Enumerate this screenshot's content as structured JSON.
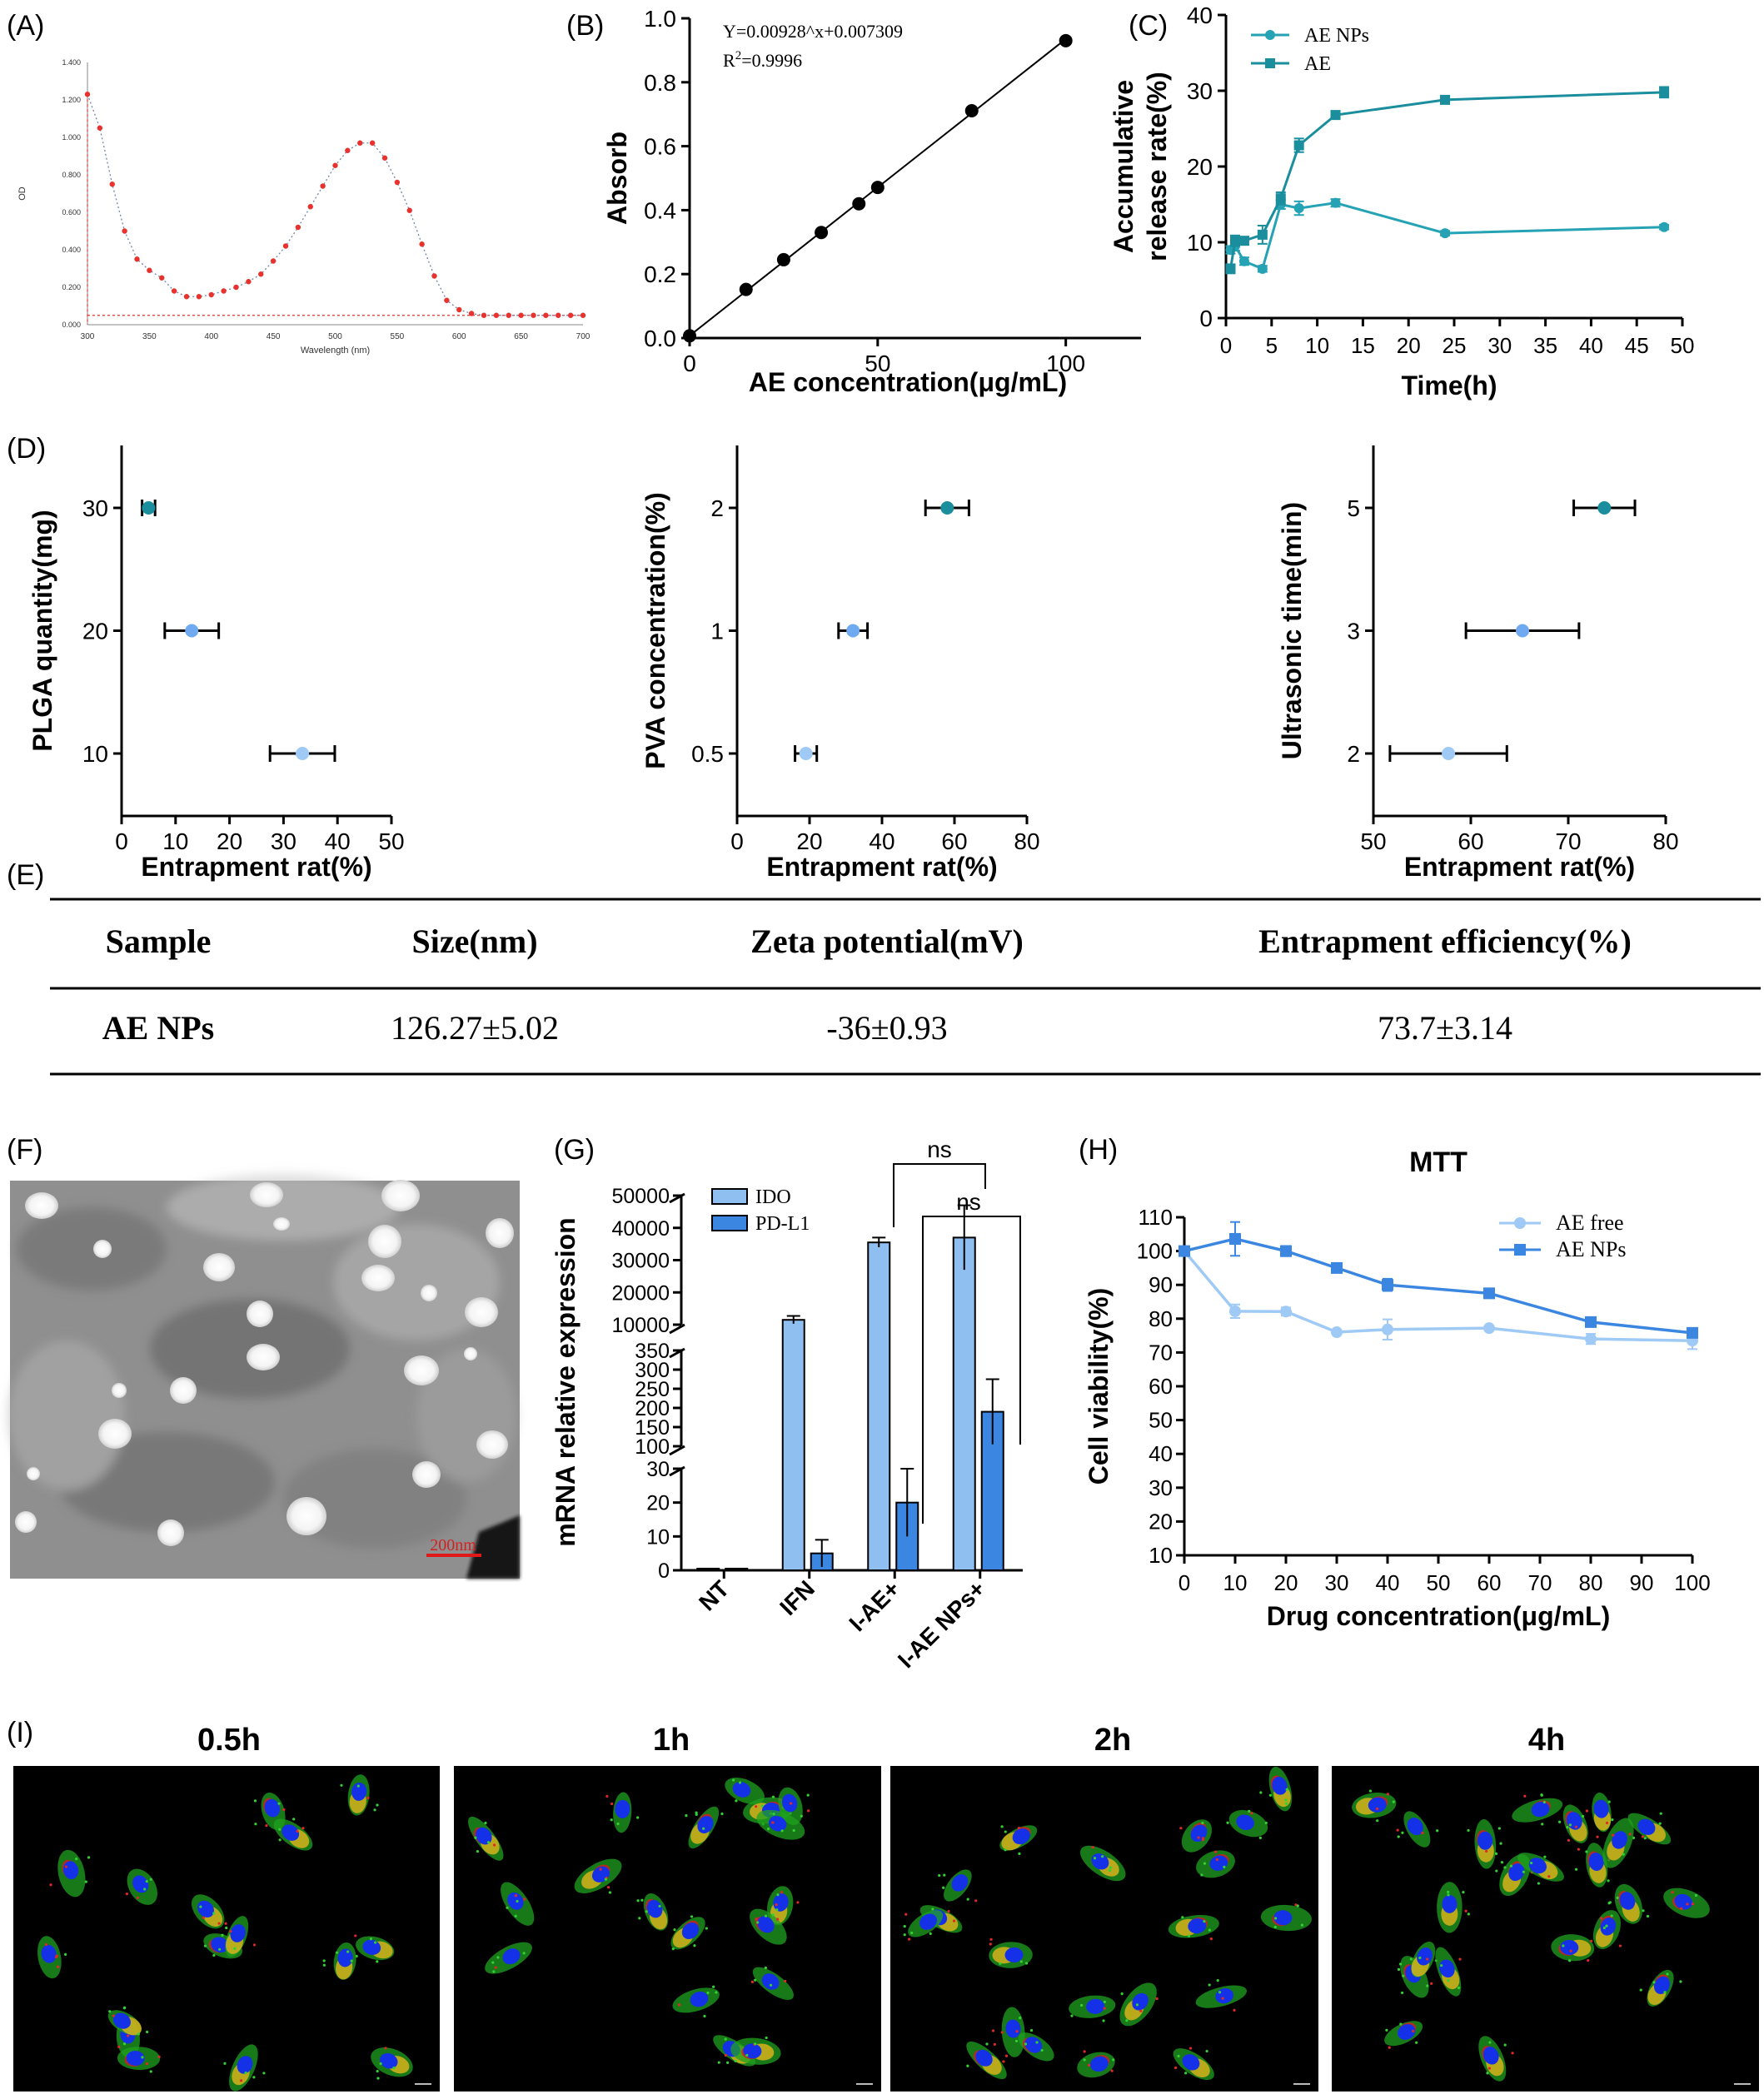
{
  "panel_labels": [
    "(A)",
    "(B)",
    "(C)",
    "(D)",
    "(E)",
    "(F)",
    "(G)",
    "(H)",
    "(I)"
  ],
  "chart_data": [
    {
      "id": "A",
      "type": "line",
      "xlabel": "Wavelength (nm)",
      "ylabel": "OD",
      "xlim": [
        300,
        700
      ],
      "ylim": [
        0,
        1.4
      ],
      "xticks": [
        "300",
        "350",
        "400",
        "450",
        "500",
        "550",
        "600",
        "650",
        "700"
      ],
      "yticks": [
        "0.000",
        "0.200",
        "0.400",
        "0.600",
        "0.800",
        "1.000",
        "1.200",
        "1.400"
      ],
      "series": [
        {
          "x": [
            300,
            310,
            320,
            330,
            340,
            350,
            360,
            370,
            380,
            390,
            400,
            410,
            420,
            430,
            440,
            450,
            460,
            470,
            480,
            490,
            500,
            510,
            520,
            530,
            540,
            550,
            560,
            570,
            580,
            590,
            600,
            610,
            620,
            630,
            640,
            650,
            660,
            670,
            680,
            690,
            700
          ],
          "values": [
            1.23,
            1.05,
            0.75,
            0.5,
            0.35,
            0.29,
            0.25,
            0.18,
            0.15,
            0.15,
            0.16,
            0.18,
            0.2,
            0.23,
            0.27,
            0.34,
            0.42,
            0.52,
            0.63,
            0.74,
            0.85,
            0.93,
            0.97,
            0.97,
            0.89,
            0.76,
            0.61,
            0.43,
            0.26,
            0.13,
            0.08,
            0.06,
            0.05,
            0.05,
            0.05,
            0.05,
            0.05,
            0.05,
            0.05,
            0.05,
            0.05
          ],
          "color": "#e8322e"
        }
      ],
      "grid": false
    },
    {
      "id": "B",
      "type": "scatter",
      "xlabel": "AE concentration(μg/mL)",
      "ylabel": "Absorb",
      "xlim": [
        0,
        120
      ],
      "ylim": [
        0,
        1.0
      ],
      "xticks": [
        "0",
        "50",
        "100"
      ],
      "yticks": [
        "0.0",
        "0.2",
        "0.4",
        "0.6",
        "0.8",
        "1.0"
      ],
      "annotations": [
        "Y=0.00928^x+0.007309",
        "R2=0.9996"
      ],
      "x": [
        0,
        15,
        25,
        35,
        45,
        50,
        75,
        100
      ],
      "values": [
        0.007,
        0.152,
        0.245,
        0.33,
        0.42,
        0.471,
        0.711,
        0.93
      ],
      "fit_line": {
        "slope": 0.00928,
        "intercept": 0.007309,
        "x_range": [
          0,
          100
        ]
      },
      "color": "#000000"
    },
    {
      "id": "C",
      "type": "line",
      "xlabel": "Time(h)",
      "ylabel": "Accumulative release rate(%)",
      "xlim": [
        0,
        50
      ],
      "ylim": [
        0,
        40
      ],
      "xticks": [
        "0",
        "5",
        "10",
        "15",
        "20",
        "25",
        "30",
        "35",
        "40",
        "45",
        "50"
      ],
      "yticks": [
        "0",
        "10",
        "20",
        "30",
        "40"
      ],
      "legend_position": "top-left",
      "series": [
        {
          "name": "AE NPs",
          "marker": "circle",
          "color": "#25a3b4",
          "x": [
            0.5,
            1,
            2,
            4,
            6,
            8,
            12,
            24,
            48
          ],
          "values": [
            9.0,
            9.5,
            7.5,
            6.5,
            15.0,
            14.5,
            15.2,
            11.2,
            12.0
          ],
          "errors": [
            0.5,
            0.6,
            0.5,
            0.4,
            0.6,
            0.9,
            0.5,
            0.3,
            0.3
          ]
        },
        {
          "name": "AE",
          "marker": "square",
          "color": "#1a8e9c",
          "x": [
            0.5,
            1,
            2,
            4,
            6,
            8,
            12,
            24,
            48
          ],
          "values": [
            6.5,
            10.2,
            10.2,
            11.0,
            15.8,
            22.8,
            26.8,
            28.8,
            29.8
          ],
          "errors": [
            0.6,
            0.7,
            0.5,
            1.2,
            0.8,
            0.9,
            0.5,
            0.4,
            0.7
          ]
        }
      ],
      "grid": false
    },
    {
      "id": "D1",
      "type": "scatter",
      "xlabel": "Entrapment rat(%)",
      "ylabel": "PLGA quantity(mg)",
      "xlim": [
        0,
        50
      ],
      "xticks": [
        "0",
        "10",
        "20",
        "30",
        "40",
        "50"
      ],
      "categories": [
        "10",
        "20",
        "30"
      ],
      "values": [
        33.5,
        13.0,
        5.0
      ],
      "errors": [
        6.0,
        5.0,
        1.2
      ],
      "colors": [
        "#9fcaf5",
        "#6fa9f0",
        "#1a8e9c"
      ]
    },
    {
      "id": "D2",
      "type": "scatter",
      "xlabel": "Entrapment rat(%)",
      "ylabel": "PVA concentration(%)",
      "xlim": [
        0,
        80
      ],
      "xticks": [
        "0",
        "20",
        "40",
        "60",
        "80"
      ],
      "categories": [
        "0.5",
        "1",
        "2"
      ],
      "values": [
        19.0,
        32.0,
        58.0
      ],
      "errors": [
        3.0,
        4.0,
        6.0
      ],
      "colors": [
        "#9fcaf5",
        "#6fa9f0",
        "#1a8e9c"
      ]
    },
    {
      "id": "D3",
      "type": "scatter",
      "xlabel": "Entrapment rat(%)",
      "ylabel": "Ultrasonic time(min)",
      "xlim": [
        50,
        80
      ],
      "xticks": [
        "50",
        "60",
        "70",
        "80"
      ],
      "categories": [
        "2",
        "3",
        "5"
      ],
      "values": [
        57.7,
        65.3,
        73.7
      ],
      "errors": [
        6.0,
        5.8,
        3.14
      ],
      "colors": [
        "#9fcaf5",
        "#6fa9f0",
        "#1a8e9c"
      ]
    },
    {
      "id": "E",
      "type": "table",
      "columns": [
        "Sample",
        "Size(nm)",
        "Zeta potential(mV)",
        "Entrapment efficiency(%)"
      ],
      "rows": [
        [
          "AE NPs",
          "126.27±5.02",
          "-36±0.93",
          "73.7±3.14"
        ]
      ]
    },
    {
      "id": "G",
      "type": "bar",
      "ylabel": "mRNA relative expression",
      "categories": [
        "NT",
        "IFN",
        "I-AE+",
        "I-AE NPs+"
      ],
      "series": [
        {
          "name": "IDO",
          "values": [
            0.5,
            11500,
            35500,
            37000
          ],
          "errors": [
            0,
            1200,
            1500,
            10000
          ],
          "color": "#8ebff0"
        },
        {
          "name": "PD-L1",
          "values": [
            0.5,
            5,
            20,
            190
          ],
          "errors": [
            0,
            4,
            10,
            85
          ],
          "color": "#3a86e0"
        }
      ],
      "y_segments": [
        {
          "range": [
            0,
            30
          ],
          "ticks": [
            "0",
            "10",
            "20",
            "30"
          ]
        },
        {
          "range": [
            100,
            350
          ],
          "ticks": [
            "100",
            "150",
            "200",
            "250",
            "300",
            "350"
          ]
        },
        {
          "range": [
            10000,
            50000
          ],
          "ticks": [
            "10000",
            "20000",
            "30000",
            "40000",
            "50000"
          ]
        }
      ],
      "annotations": [
        "ns",
        "ns"
      ]
    },
    {
      "id": "H",
      "type": "line",
      "title": "MTT",
      "xlabel": "Drug concentration(μg/mL)",
      "ylabel": "Cell viability(%)",
      "xlim": [
        0,
        100
      ],
      "ylim": [
        10,
        110
      ],
      "xticks": [
        "0",
        "10",
        "20",
        "30",
        "40",
        "50",
        "60",
        "70",
        "80",
        "90",
        "100"
      ],
      "yticks": [
        "10",
        "20",
        "30",
        "40",
        "50",
        "60",
        "70",
        "80",
        "90",
        "100",
        "110"
      ],
      "legend_position": "top-right",
      "series": [
        {
          "name": "AE free",
          "marker": "circle",
          "color": "#9fcaf5",
          "x": [
            0,
            10,
            20,
            30,
            40,
            60,
            80,
            100
          ],
          "values": [
            100,
            82.2,
            82.1,
            76.0,
            76.8,
            77.2,
            74.0,
            73.5
          ],
          "errors": [
            0,
            2,
            1.2,
            0.6,
            3,
            0.5,
            1.5,
            2.5
          ]
        },
        {
          "name": "AE NPs",
          "marker": "square",
          "color": "#3a86e0",
          "x": [
            0,
            10,
            20,
            30,
            40,
            60,
            80,
            100
          ],
          "values": [
            100,
            103.6,
            100.0,
            95.0,
            90.0,
            87.5,
            79.0,
            75.8
          ],
          "errors": [
            0,
            5,
            1.5,
            0.8,
            1.8,
            0.6,
            0.5,
            0.8
          ]
        }
      ]
    }
  ],
  "images": {
    "tem_scale_label": "200nm",
    "tem_bg": "#9a9a9a",
    "fluorescence_labels": [
      "0.5h",
      "1h",
      "2h",
      "4h"
    ],
    "fluorescence_bg": "#000000"
  }
}
